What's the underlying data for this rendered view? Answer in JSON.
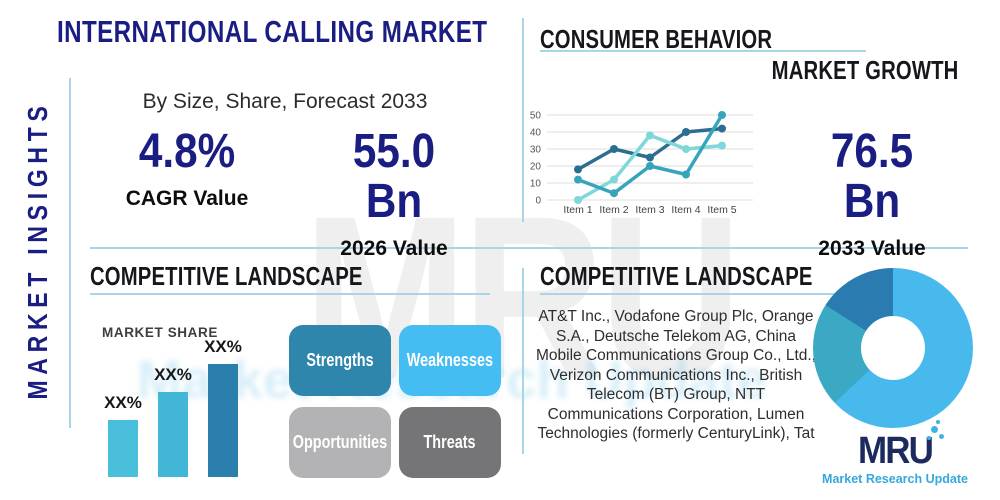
{
  "palette": {
    "navy": "#1a1d82",
    "heading_black": "#15171a",
    "divider_blue": "#a9d6e5",
    "body_text": "#2e2e2e",
    "logo_navy": "#1c2a5e",
    "logo_blue": "#35a8dc"
  },
  "sidebar": {
    "vertical_label": "MARKET INSIGHTS"
  },
  "header": {
    "title": "INTERNATIONAL CALLING MARKET",
    "subtitle": "By Size, Share, Forecast 2033",
    "stats": [
      {
        "value": "4.8%",
        "label": "CAGR Value"
      },
      {
        "value": "55.0 Bn",
        "label": "2026 Value"
      }
    ]
  },
  "market_growth": {
    "title": "CONSUMER BEHAVIOR",
    "subtitle": "MARKET GROWTH",
    "stat": {
      "value": "76.5 Bn",
      "label": "2033 Value"
    }
  },
  "competitive_left": {
    "title": "COMPETITIVE LANDSCAPE",
    "swot": [
      {
        "label": "Strengths",
        "color": "#2e86ad"
      },
      {
        "label": "Weaknesses",
        "color": "#46bdf2"
      },
      {
        "label": "Opportunities",
        "color": "#b3b3b5"
      },
      {
        "label": "Threats",
        "color": "#757577"
      }
    ]
  },
  "competitive_right": {
    "title": "COMPETITIVE LANDSCAPE",
    "companies": "AT&T Inc., Vodafone Group Plc, Orange S.A., Deutsche Telekom AG, China Mobile Communications Group Co., Ltd., Verizon Communications Inc., British Telecom (BT) Group, NTT Communications Corporation, Lumen Technologies (formerly CenturyLink), Tat"
  },
  "logo": {
    "text": "MRU",
    "tagline": "Market Research Update"
  },
  "watermark": {
    "text": "MRU",
    "tagline": "Market Research Update"
  },
  "chart_data": [
    {
      "type": "line",
      "title": "",
      "categories": [
        "Item 1",
        "Item 2",
        "Item 3",
        "Item 4",
        "Item 5"
      ],
      "series": [
        {
          "name": "dark-blue-series",
          "color": "#2c6e91",
          "values": [
            18,
            30,
            25,
            40,
            42
          ]
        },
        {
          "name": "aqua-series",
          "color": "#7ed7d8",
          "values": [
            0,
            12,
            38,
            30,
            32
          ]
        },
        {
          "name": "teal-series",
          "color": "#36a5bc",
          "values": [
            12,
            4,
            20,
            15,
            50
          ]
        }
      ],
      "ylim": [
        0,
        50
      ],
      "yticks": [
        0,
        10,
        20,
        30,
        40,
        50
      ],
      "grid": true,
      "legend": "none"
    },
    {
      "type": "bar",
      "title": "MARKET SHARE",
      "categories": [
        "bar-1",
        "bar-2",
        "bar-3"
      ],
      "values": [
        30,
        45,
        60
      ],
      "bar_labels": [
        "XX%",
        "XX%",
        "XX%"
      ],
      "colors": [
        "#49bfdc",
        "#41b6d6",
        "#2b7fad"
      ],
      "ylabel": "",
      "xlabel": ""
    },
    {
      "type": "pie",
      "donut": true,
      "slices": [
        {
          "label": "light-blue-segment",
          "value": 63,
          "color": "#47b9ec"
        },
        {
          "label": "teal-segment",
          "value": 21,
          "color": "#3ba9c4"
        },
        {
          "label": "dark-blue-segment",
          "value": 16,
          "color": "#2a7cb0"
        }
      ]
    }
  ]
}
